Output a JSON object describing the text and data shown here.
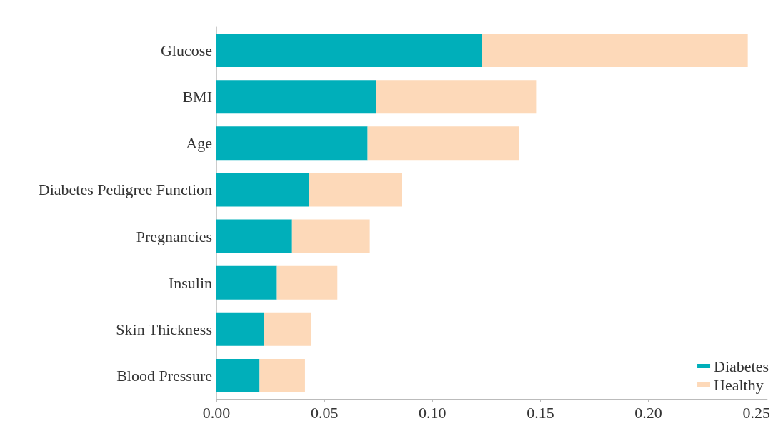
{
  "chart_data": {
    "type": "bar",
    "orientation": "horizontal",
    "stacked": true,
    "categories": [
      "Glucose",
      "BMI",
      "Age",
      "Diabetes Pedigree Function",
      "Pregnancies",
      "Insulin",
      "Skin Thickness",
      "Blood Pressure"
    ],
    "series": [
      {
        "name": "Diabetes",
        "color": "#00afba",
        "values": [
          0.123,
          0.074,
          0.07,
          0.043,
          0.035,
          0.028,
          0.022,
          0.02
        ]
      },
      {
        "name": "Healthy",
        "color": "#fdd9b9",
        "values": [
          0.123,
          0.074,
          0.07,
          0.043,
          0.036,
          0.028,
          0.022,
          0.021
        ]
      }
    ],
    "xlim": [
      0,
      0.255
    ],
    "xticks": [
      {
        "value": 0,
        "label": "0.00"
      },
      0.05,
      {
        "value": 0.1,
        "label": "0.10"
      },
      0.15,
      {
        "value": 0.2,
        "label": "0.20"
      },
      0.25
    ],
    "grid": false,
    "legend": "bottom right"
  }
}
